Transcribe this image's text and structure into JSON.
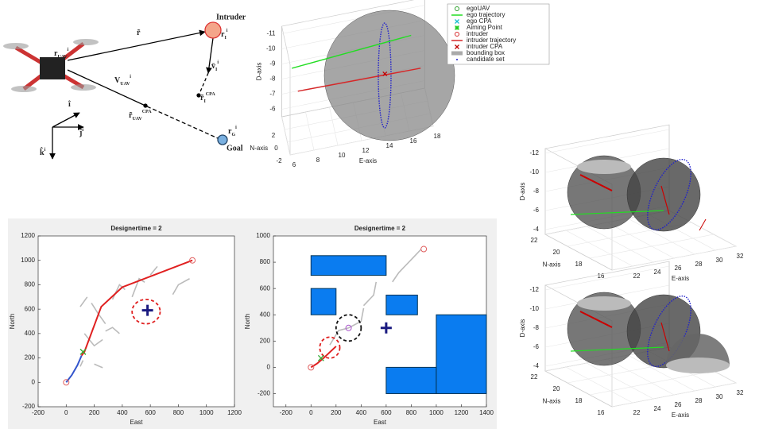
{
  "diagram": {
    "intruder": "Intruder",
    "goal": "Goal",
    "labels": [
      {
        "base": "r",
        "sup": "i",
        "sub": "UAV"
      },
      {
        "base": "r̃"
      },
      {
        "base": "r",
        "sup": "i",
        "sub": "I"
      },
      {
        "base": "v̄",
        "sup": "i",
        "sub": "I"
      },
      {
        "base": "V",
        "sup": "i",
        "sub": "UAV"
      },
      {
        "base": "r̃",
        "sup": "CPA",
        "sub": "I"
      },
      {
        "base": "r̃",
        "sup": "CPA",
        "sub": "UAV"
      },
      {
        "base": "r",
        "sup": "i",
        "sub": "G"
      },
      {
        "base": "î"
      },
      {
        "base": "ĵ",
        "sup": "i"
      },
      {
        "base": "k̂",
        "sup": "i"
      }
    ]
  },
  "chart_data": [
    {
      "type": "scatter3d",
      "xlabel": "E-axis",
      "ylabel": "N-axis",
      "zlabel": "D-axis",
      "xlim": [
        6,
        18
      ],
      "ylim": [
        -2,
        4
      ],
      "zlim": [
        -11.5,
        -5.5
      ],
      "xticks": [
        6,
        8,
        10,
        12,
        14,
        16,
        18
      ],
      "yticks": [
        -2,
        0,
        2
      ],
      "zticks": [
        -11,
        -10,
        -9,
        -8,
        -7,
        -6
      ],
      "series": [
        {
          "name": "egoUAV",
          "color": "#2ca02c",
          "marker": "o"
        },
        {
          "name": "ego trajectory",
          "color": "#22dd22",
          "marker": "line",
          "x": [
            6.5,
            11.5,
            16.5
          ],
          "y": [
            1,
            1,
            1
          ],
          "z": [
            -9.9,
            -10.2,
            -10.5
          ]
        },
        {
          "name": "ego CPA",
          "color": "#17becf",
          "marker": "x"
        },
        {
          "name": "Aiming Point",
          "color": "#22cc22",
          "marker": "star"
        },
        {
          "name": "intruder",
          "color": "#d62728",
          "marker": "o"
        },
        {
          "name": "intruder trajectory",
          "color": "#d62728",
          "marker": "line",
          "x": [
            7,
            12,
            17.3
          ],
          "y": [
            1,
            1,
            1
          ],
          "z": [
            -8.3,
            -8.25,
            -8.2
          ]
        },
        {
          "name": "intruder CPA",
          "color": "#c00000",
          "marker": "x",
          "x": [
            14.3
          ],
          "y": [
            1
          ],
          "z": [
            -8.3
          ]
        },
        {
          "name": "bounding box",
          "color": "#aaaaaa",
          "marker": "rect"
        },
        {
          "name": "candidate set",
          "color": "#1f1fcc",
          "marker": "dot"
        }
      ]
    },
    {
      "type": "scatter3d",
      "xlabel": "E-axis",
      "ylabel": "N-axis",
      "zlabel": "D-axis",
      "xlim": [
        20,
        32
      ],
      "ylim": [
        16,
        22
      ],
      "zlim": [
        -12.5,
        -3.5
      ],
      "xticks": [
        22,
        24,
        26,
        28,
        30,
        32
      ],
      "yticks": [
        16,
        18,
        20,
        22
      ],
      "zticks": [
        -12,
        -10,
        -8,
        -6,
        -4
      ]
    },
    {
      "type": "scatter3d",
      "xlabel": "E-axis",
      "ylabel": "N-axis",
      "zlabel": "D-axis",
      "xlim": [
        20,
        32
      ],
      "ylim": [
        16,
        22
      ],
      "zlim": [
        -12.5,
        -3.5
      ],
      "xticks": [
        22,
        24,
        26,
        28,
        30,
        32
      ],
      "yticks": [
        16,
        18,
        20,
        22
      ],
      "zticks": [
        -12,
        -10,
        -8,
        -6,
        -4
      ]
    },
    {
      "type": "line",
      "title": "Designertime = 2",
      "xlabel": "East",
      "ylabel": "North",
      "xlim": [
        -200,
        1200
      ],
      "ylim": [
        -200,
        1200
      ],
      "xticks": [
        -200,
        0,
        200,
        400,
        600,
        800,
        1000,
        1200
      ],
      "yticks": [
        -200,
        0,
        200,
        400,
        600,
        800,
        1000,
        1200
      ],
      "series": [
        {
          "color": "#bbbbbb",
          "x": [
            130,
            200,
            260,
            null,
            180,
            230,
            280,
            null,
            100,
            150,
            null,
            330,
            380,
            420,
            null,
            470,
            520,
            560,
            null,
            600,
            650,
            null,
            760,
            800,
            880,
            null,
            280,
            330,
            380,
            null,
            120,
            100,
            null,
            200,
            260
          ],
          "y": [
            400,
            300,
            350,
            null,
            650,
            560,
            480,
            null,
            620,
            700,
            null,
            680,
            800,
            760,
            null,
            700,
            850,
            820,
            null,
            880,
            950,
            null,
            720,
            800,
            850,
            null,
            420,
            450,
            400,
            null,
            180,
            130,
            null,
            150,
            120
          ]
        },
        {
          "color": "#3355cc",
          "x": [
            0,
            40,
            80,
            110
          ],
          "y": [
            0,
            60,
            140,
            220
          ]
        },
        {
          "color": "#e02020",
          "x": [
            110,
            130,
            250,
            400,
            900
          ],
          "y": [
            220,
            250,
            620,
            780,
            1000
          ]
        }
      ],
      "markers": [
        {
          "marker": "o",
          "color": "#e06060",
          "x": 0,
          "y": 0
        },
        {
          "marker": "o",
          "color": "#e06060",
          "x": 900,
          "y": 1000
        },
        {
          "marker": "x",
          "color": "#33aa33",
          "x": 120,
          "y": 250
        },
        {
          "marker": "plus",
          "color": "#1a1a80",
          "x": 580,
          "y": 590
        }
      ],
      "circles": [
        {
          "color": "#e02020",
          "x": 570,
          "y": 580,
          "r": 100
        }
      ]
    },
    {
      "type": "line",
      "title": "Designertime = 2",
      "xlabel": "East",
      "ylabel": "North",
      "xlim": [
        -300,
        1400
      ],
      "ylim": [
        -300,
        1000
      ],
      "xticks": [
        -200,
        0,
        200,
        400,
        600,
        800,
        1000,
        1200,
        1400
      ],
      "yticks": [
        -200,
        0,
        200,
        400,
        600,
        800,
        1000
      ],
      "obstacles": [
        {
          "x": [
            0,
            600
          ],
          "y": [
            700,
            850
          ]
        },
        {
          "x": [
            0,
            200
          ],
          "y": [
            400,
            600
          ]
        },
        {
          "x": [
            600,
            850
          ],
          "y": [
            400,
            550
          ]
        },
        {
          "x": [
            600,
            1000
          ],
          "y": [
            -200,
            0
          ]
        },
        {
          "x": [
            1000,
            1400
          ],
          "y": [
            -200,
            400
          ]
        }
      ],
      "series": [
        {
          "color": "#bbbbbb",
          "x": [
            150,
            220,
            300,
            400,
            420,
            null,
            420,
            500,
            520,
            null,
            650,
            700,
            800,
            880
          ],
          "y": [
            170,
            280,
            300,
            350,
            450,
            null,
            470,
            550,
            650,
            null,
            650,
            720,
            820,
            900
          ]
        },
        {
          "color": "#e02020",
          "x": [
            0,
            50,
            100,
            200
          ],
          "y": [
            0,
            30,
            70,
            160
          ]
        }
      ],
      "markers": [
        {
          "marker": "o",
          "color": "#e06060",
          "x": 0,
          "y": 0
        },
        {
          "marker": "o",
          "color": "#e06060",
          "x": 900,
          "y": 900
        },
        {
          "marker": "x",
          "color": "#33aa33",
          "x": 80,
          "y": 70
        },
        {
          "marker": "o",
          "color": "#aa55cc",
          "x": 300,
          "y": 300
        },
        {
          "marker": "plus",
          "color": "#1a1a80",
          "x": 600,
          "y": 300
        }
      ],
      "circles": [
        {
          "color": "#111111",
          "x": 300,
          "y": 300,
          "r": 100
        },
        {
          "color": "#e02020",
          "x": 150,
          "y": 150,
          "r": 80
        }
      ]
    }
  ]
}
